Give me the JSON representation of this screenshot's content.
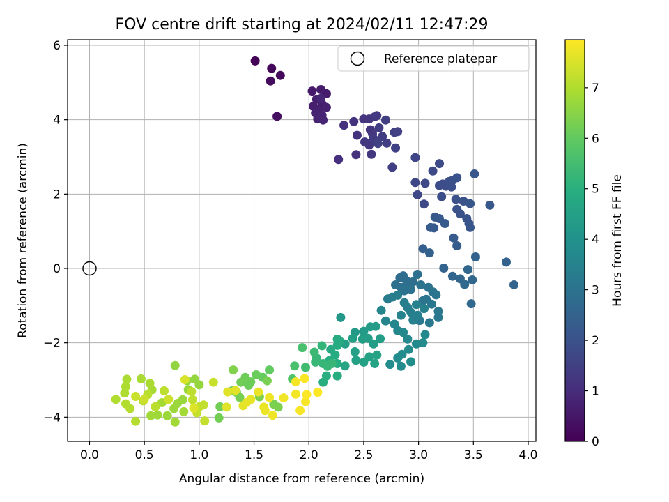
{
  "chart_data": {
    "type": "scatter",
    "title": "FOV centre drift starting at 2024/02/11 12:47:29",
    "xlabel": "Angular distance from reference (arcmin)",
    "ylabel": "Rotation from reference (arcmin)",
    "xlim": [
      -0.2,
      4.07
    ],
    "ylim": [
      -4.65,
      6.15
    ],
    "xticks": [
      "0.0",
      "0.5",
      "1.0",
      "1.5",
      "2.0",
      "2.5",
      "3.0",
      "3.5",
      "4.0"
    ],
    "yticks": [
      "−4",
      "−2",
      "0",
      "2",
      "4",
      "6"
    ],
    "grid": true,
    "legend": {
      "position": "top-right",
      "entries": [
        "Reference platepar"
      ]
    },
    "reference_point": {
      "x": 0.0,
      "y": 0.0
    },
    "colorbar": {
      "label": "Hours from first FF file",
      "range": [
        0,
        7.95
      ],
      "ticks": [
        "0",
        "1",
        "2",
        "3",
        "4",
        "5",
        "6",
        "7"
      ],
      "colormap": "viridis"
    },
    "points": [
      {
        "x": 1.51,
        "y": 5.58,
        "h": 0.05
      },
      {
        "x": 1.66,
        "y": 5.38,
        "h": 0.15
      },
      {
        "x": 1.74,
        "y": 5.19,
        "h": 0.2
      },
      {
        "x": 1.65,
        "y": 5.04,
        "h": 0.25
      },
      {
        "x": 1.71,
        "y": 4.09,
        "h": 0.35
      },
      {
        "x": 2.03,
        "y": 4.77,
        "h": 0.55
      },
      {
        "x": 2.11,
        "y": 4.81,
        "h": 0.6
      },
      {
        "x": 2.16,
        "y": 4.7,
        "h": 0.62
      },
      {
        "x": 2.07,
        "y": 4.55,
        "h": 0.65
      },
      {
        "x": 2.12,
        "y": 4.42,
        "h": 0.68
      },
      {
        "x": 2.04,
        "y": 4.36,
        "h": 0.7
      },
      {
        "x": 2.09,
        "y": 4.27,
        "h": 0.72
      },
      {
        "x": 2.16,
        "y": 4.33,
        "h": 0.74
      },
      {
        "x": 2.06,
        "y": 4.18,
        "h": 0.76
      },
      {
        "x": 2.12,
        "y": 4.12,
        "h": 0.78
      },
      {
        "x": 2.08,
        "y": 4.02,
        "h": 0.8
      },
      {
        "x": 2.13,
        "y": 3.99,
        "h": 0.82
      },
      {
        "x": 2.11,
        "y": 4.57,
        "h": 0.84
      },
      {
        "x": 2.27,
        "y": 2.93,
        "h": 1.05
      },
      {
        "x": 2.32,
        "y": 3.85,
        "h": 1.1
      },
      {
        "x": 2.41,
        "y": 3.95,
        "h": 1.12
      },
      {
        "x": 2.44,
        "y": 3.58,
        "h": 1.14
      },
      {
        "x": 2.43,
        "y": 3.06,
        "h": 1.16
      },
      {
        "x": 2.5,
        "y": 4.02,
        "h": 1.18
      },
      {
        "x": 2.55,
        "y": 4.02,
        "h": 1.2
      },
      {
        "x": 2.56,
        "y": 3.73,
        "h": 1.22
      },
      {
        "x": 2.58,
        "y": 3.62,
        "h": 1.24
      },
      {
        "x": 2.55,
        "y": 3.32,
        "h": 1.26
      },
      {
        "x": 2.51,
        "y": 3.4,
        "h": 1.28
      },
      {
        "x": 2.57,
        "y": 3.07,
        "h": 1.3
      },
      {
        "x": 2.6,
        "y": 4.08,
        "h": 1.32
      },
      {
        "x": 2.62,
        "y": 4.11,
        "h": 1.34
      },
      {
        "x": 2.59,
        "y": 3.49,
        "h": 1.36
      },
      {
        "x": 2.61,
        "y": 3.4,
        "h": 1.38
      },
      {
        "x": 2.64,
        "y": 3.78,
        "h": 1.4
      },
      {
        "x": 2.67,
        "y": 3.55,
        "h": 1.42
      },
      {
        "x": 2.7,
        "y": 3.99,
        "h": 1.44
      },
      {
        "x": 2.71,
        "y": 3.37,
        "h": 1.46
      },
      {
        "x": 2.76,
        "y": 2.72,
        "h": 1.48
      },
      {
        "x": 2.78,
        "y": 3.66,
        "h": 1.5
      },
      {
        "x": 2.81,
        "y": 3.68,
        "h": 1.52
      },
      {
        "x": 2.79,
        "y": 3.24,
        "h": 1.54
      },
      {
        "x": 2.63,
        "y": 3.36,
        "h": 1.56
      },
      {
        "x": 2.97,
        "y": 2.98,
        "h": 1.65
      },
      {
        "x": 2.97,
        "y": 2.31,
        "h": 1.7
      },
      {
        "x": 2.99,
        "y": 1.98,
        "h": 1.72
      },
      {
        "x": 3.06,
        "y": 2.29,
        "h": 1.74
      },
      {
        "x": 3.05,
        "y": 1.73,
        "h": 1.76
      },
      {
        "x": 3.13,
        "y": 2.62,
        "h": 1.78
      },
      {
        "x": 3.19,
        "y": 2.82,
        "h": 1.8
      },
      {
        "x": 3.19,
        "y": 2.23,
        "h": 1.82
      },
      {
        "x": 3.22,
        "y": 2.27,
        "h": 1.84
      },
      {
        "x": 3.25,
        "y": 2.21,
        "h": 1.86
      },
      {
        "x": 3.21,
        "y": 1.93,
        "h": 1.88
      },
      {
        "x": 3.28,
        "y": 2.34,
        "h": 1.9
      },
      {
        "x": 3.3,
        "y": 2.19,
        "h": 1.92
      },
      {
        "x": 3.31,
        "y": 2.37,
        "h": 1.94
      },
      {
        "x": 3.35,
        "y": 2.44,
        "h": 1.96
      },
      {
        "x": 3.34,
        "y": 1.86,
        "h": 1.98
      },
      {
        "x": 3.41,
        "y": 1.81,
        "h": 2.0
      },
      {
        "x": 3.35,
        "y": 1.59,
        "h": 2.02
      },
      {
        "x": 3.38,
        "y": 1.47,
        "h": 2.04
      },
      {
        "x": 3.44,
        "y": 1.34,
        "h": 2.06
      },
      {
        "x": 3.46,
        "y": 1.21,
        "h": 2.08
      },
      {
        "x": 3.47,
        "y": 1.1,
        "h": 2.1
      },
      {
        "x": 3.47,
        "y": 1.74,
        "h": 2.12
      },
      {
        "x": 3.51,
        "y": 2.54,
        "h": 2.14
      },
      {
        "x": 3.65,
        "y": 1.7,
        "h": 2.16
      },
      {
        "x": 3.15,
        "y": 1.38,
        "h": 2.18
      },
      {
        "x": 3.19,
        "y": 1.34,
        "h": 2.2
      },
      {
        "x": 3.24,
        "y": 1.21,
        "h": 2.22
      },
      {
        "x": 3.14,
        "y": 1.09,
        "h": 2.24
      },
      {
        "x": 3.11,
        "y": 1.1,
        "h": 2.26
      },
      {
        "x": 3.32,
        "y": 0.82,
        "h": 2.28
      },
      {
        "x": 3.35,
        "y": 0.61,
        "h": 2.3
      },
      {
        "x": 3.04,
        "y": 0.53,
        "h": 2.4
      },
      {
        "x": 3.1,
        "y": 0.42,
        "h": 2.45
      },
      {
        "x": 3.52,
        "y": 0.31,
        "h": 2.5
      },
      {
        "x": 3.8,
        "y": 0.17,
        "h": 2.52
      },
      {
        "x": 3.87,
        "y": -0.44,
        "h": 2.54
      },
      {
        "x": 3.23,
        "y": 0.01,
        "h": 2.56
      },
      {
        "x": 3.31,
        "y": -0.21,
        "h": 2.58
      },
      {
        "x": 3.38,
        "y": -0.28,
        "h": 2.6
      },
      {
        "x": 3.45,
        "y": -0.03,
        "h": 2.62
      },
      {
        "x": 3.49,
        "y": -0.31,
        "h": 2.64
      },
      {
        "x": 3.42,
        "y": -0.43,
        "h": 2.66
      },
      {
        "x": 3.48,
        "y": -0.95,
        "h": 2.68
      },
      {
        "x": 2.83,
        "y": -0.25,
        "h": 2.8
      },
      {
        "x": 2.86,
        "y": -0.2,
        "h": 2.82
      },
      {
        "x": 2.89,
        "y": -0.33,
        "h": 2.84
      },
      {
        "x": 2.91,
        "y": -0.4,
        "h": 2.86
      },
      {
        "x": 2.95,
        "y": -0.36,
        "h": 2.88
      },
      {
        "x": 2.99,
        "y": -0.16,
        "h": 2.9
      },
      {
        "x": 2.79,
        "y": -0.44,
        "h": 2.92
      },
      {
        "x": 2.84,
        "y": -0.51,
        "h": 2.94
      },
      {
        "x": 2.87,
        "y": -0.6,
        "h": 2.96
      },
      {
        "x": 2.93,
        "y": -0.56,
        "h": 2.98
      },
      {
        "x": 3.02,
        "y": -0.44,
        "h": 3.0
      },
      {
        "x": 3.09,
        "y": -0.51,
        "h": 3.02
      },
      {
        "x": 3.13,
        "y": -0.63,
        "h": 3.04
      },
      {
        "x": 3.16,
        "y": -0.71,
        "h": 3.06
      },
      {
        "x": 3.07,
        "y": -0.83,
        "h": 3.08
      },
      {
        "x": 3.04,
        "y": -0.87,
        "h": 3.1
      },
      {
        "x": 3.12,
        "y": -0.96,
        "h": 3.12
      },
      {
        "x": 3.18,
        "y": -1.15,
        "h": 3.14
      },
      {
        "x": 3.18,
        "y": -1.32,
        "h": 3.16
      },
      {
        "x": 3.1,
        "y": -1.46,
        "h": 3.18
      },
      {
        "x": 3.01,
        "y": -1.4,
        "h": 3.2
      },
      {
        "x": 2.72,
        "y": -0.82,
        "h": 3.3
      },
      {
        "x": 2.76,
        "y": -0.77,
        "h": 3.32
      },
      {
        "x": 2.81,
        "y": -0.72,
        "h": 3.34
      },
      {
        "x": 2.87,
        "y": -0.92,
        "h": 3.36
      },
      {
        "x": 2.9,
        "y": -1.05,
        "h": 3.38
      },
      {
        "x": 2.93,
        "y": -1.18,
        "h": 3.4
      },
      {
        "x": 2.99,
        "y": -1.26,
        "h": 3.42
      },
      {
        "x": 2.95,
        "y": -1.39,
        "h": 3.44
      },
      {
        "x": 3.05,
        "y": -1.08,
        "h": 3.46
      },
      {
        "x": 2.98,
        "y": -0.97,
        "h": 3.48
      },
      {
        "x": 2.84,
        "y": -1.26,
        "h": 3.5
      },
      {
        "x": 2.66,
        "y": -1.13,
        "h": 3.6
      },
      {
        "x": 2.7,
        "y": -1.41,
        "h": 3.62
      },
      {
        "x": 2.78,
        "y": -1.5,
        "h": 3.64
      },
      {
        "x": 2.81,
        "y": -1.67,
        "h": 3.66
      },
      {
        "x": 2.86,
        "y": -1.72,
        "h": 3.68
      },
      {
        "x": 2.9,
        "y": -1.9,
        "h": 3.7
      },
      {
        "x": 3.06,
        "y": -1.78,
        "h": 3.72
      },
      {
        "x": 3.04,
        "y": -2.0,
        "h": 3.74
      },
      {
        "x": 2.98,
        "y": -2.03,
        "h": 3.76
      },
      {
        "x": 2.91,
        "y": -2.18,
        "h": 3.78
      },
      {
        "x": 2.85,
        "y": -2.31,
        "h": 3.8
      },
      {
        "x": 2.81,
        "y": -2.41,
        "h": 3.82
      },
      {
        "x": 2.84,
        "y": -2.63,
        "h": 3.84
      },
      {
        "x": 2.74,
        "y": -2.58,
        "h": 3.86
      },
      {
        "x": 2.93,
        "y": -2.51,
        "h": 3.88
      },
      {
        "x": 2.29,
        "y": -1.32,
        "h": 4.2
      },
      {
        "x": 2.42,
        "y": -1.72,
        "h": 4.3
      },
      {
        "x": 2.5,
        "y": -1.69,
        "h": 4.32
      },
      {
        "x": 2.56,
        "y": -1.57,
        "h": 4.34
      },
      {
        "x": 2.61,
        "y": -1.56,
        "h": 4.36
      },
      {
        "x": 2.65,
        "y": -1.89,
        "h": 4.38
      },
      {
        "x": 2.59,
        "y": -2.03,
        "h": 4.4
      },
      {
        "x": 2.54,
        "y": -1.88,
        "h": 4.42
      },
      {
        "x": 2.49,
        "y": -1.9,
        "h": 4.44
      },
      {
        "x": 2.4,
        "y": -1.88,
        "h": 4.46
      },
      {
        "x": 2.33,
        "y": -2.03,
        "h": 4.48
      },
      {
        "x": 2.42,
        "y": -2.24,
        "h": 4.5
      },
      {
        "x": 2.43,
        "y": -2.47,
        "h": 4.52
      },
      {
        "x": 2.5,
        "y": -2.52,
        "h": 4.54
      },
      {
        "x": 2.55,
        "y": -2.38,
        "h": 4.56
      },
      {
        "x": 2.6,
        "y": -2.56,
        "h": 4.58
      },
      {
        "x": 2.62,
        "y": -2.33,
        "h": 4.6
      },
      {
        "x": 2.33,
        "y": -2.62,
        "h": 4.62
      },
      {
        "x": 2.2,
        "y": -2.18,
        "h": 4.8
      },
      {
        "x": 2.26,
        "y": -1.9,
        "h": 4.82
      },
      {
        "x": 2.28,
        "y": -1.95,
        "h": 4.84
      },
      {
        "x": 2.26,
        "y": -2.07,
        "h": 4.86
      },
      {
        "x": 2.24,
        "y": -2.33,
        "h": 4.88
      },
      {
        "x": 2.19,
        "y": -2.47,
        "h": 4.9
      },
      {
        "x": 2.26,
        "y": -2.56,
        "h": 4.92
      },
      {
        "x": 2.26,
        "y": -2.89,
        "h": 4.94
      },
      {
        "x": 2.16,
        "y": -2.89,
        "h": 4.96
      },
      {
        "x": 2.13,
        "y": -3.06,
        "h": 4.98
      },
      {
        "x": 2.12,
        "y": -2.08,
        "h": 5.2
      },
      {
        "x": 2.13,
        "y": -2.56,
        "h": 5.22
      },
      {
        "x": 2.07,
        "y": -2.41,
        "h": 5.24
      },
      {
        "x": 2.17,
        "y": -2.63,
        "h": 5.26
      },
      {
        "x": 2.21,
        "y": -2.56,
        "h": 5.28
      },
      {
        "x": 2.06,
        "y": -2.52,
        "h": 5.3
      },
      {
        "x": 2.05,
        "y": -2.25,
        "h": 5.35
      },
      {
        "x": 1.97,
        "y": -2.66,
        "h": 5.45
      },
      {
        "x": 1.94,
        "y": -2.13,
        "h": 5.6
      },
      {
        "x": 1.87,
        "y": -2.62,
        "h": 5.62
      },
      {
        "x": 1.85,
        "y": -2.97,
        "h": 5.7
      },
      {
        "x": 1.64,
        "y": -2.73,
        "h": 6.0
      },
      {
        "x": 1.58,
        "y": -2.93,
        "h": 6.05
      },
      {
        "x": 1.52,
        "y": -2.86,
        "h": 6.1
      },
      {
        "x": 1.47,
        "y": -3.05,
        "h": 6.12
      },
      {
        "x": 1.45,
        "y": -3.14,
        "h": 6.14
      },
      {
        "x": 1.42,
        "y": -2.93,
        "h": 6.16
      },
      {
        "x": 1.38,
        "y": -3.06,
        "h": 6.18
      },
      {
        "x": 1.3,
        "y": -3.29,
        "h": 6.2
      },
      {
        "x": 1.19,
        "y": -3.72,
        "h": 6.22
      },
      {
        "x": 1.18,
        "y": -4.02,
        "h": 6.24
      },
      {
        "x": 1.34,
        "y": -3.33,
        "h": 6.26
      },
      {
        "x": 1.37,
        "y": -3.47,
        "h": 6.28
      },
      {
        "x": 1.62,
        "y": -3.02,
        "h": 6.3
      },
      {
        "x": 1.68,
        "y": -3.65,
        "h": 6.32
      },
      {
        "x": 1.72,
        "y": -3.73,
        "h": 6.34
      },
      {
        "x": 1.55,
        "y": -3.45,
        "h": 6.36
      },
      {
        "x": 1.31,
        "y": -2.73,
        "h": 6.4
      },
      {
        "x": 0.78,
        "y": -2.61,
        "h": 6.6
      },
      {
        "x": 0.89,
        "y": -3.02,
        "h": 6.62
      },
      {
        "x": 0.96,
        "y": -2.98,
        "h": 6.64
      },
      {
        "x": 1.0,
        "y": -3.13,
        "h": 6.66
      },
      {
        "x": 0.9,
        "y": -3.26,
        "h": 6.68
      },
      {
        "x": 0.85,
        "y": -3.53,
        "h": 6.7
      },
      {
        "x": 0.8,
        "y": -3.63,
        "h": 6.72
      },
      {
        "x": 0.77,
        "y": -3.77,
        "h": 6.74
      },
      {
        "x": 0.71,
        "y": -3.96,
        "h": 6.76
      },
      {
        "x": 0.62,
        "y": -3.94,
        "h": 6.78
      },
      {
        "x": 0.56,
        "y": -3.96,
        "h": 6.8
      },
      {
        "x": 0.78,
        "y": -4.13,
        "h": 6.82
      },
      {
        "x": 0.86,
        "y": -3.85,
        "h": 6.84
      },
      {
        "x": 0.66,
        "y": -3.61,
        "h": 6.86
      },
      {
        "x": 0.57,
        "y": -3.26,
        "h": 6.88
      },
      {
        "x": 0.55,
        "y": -3.09,
        "h": 6.9
      },
      {
        "x": 0.47,
        "y": -2.97,
        "h": 6.92
      },
      {
        "x": 0.34,
        "y": -2.98,
        "h": 6.94
      },
      {
        "x": 0.33,
        "y": -3.18,
        "h": 6.96
      },
      {
        "x": 0.32,
        "y": -3.35,
        "h": 6.98
      },
      {
        "x": 0.24,
        "y": -3.52,
        "h": 7.0
      },
      {
        "x": 0.33,
        "y": -3.64,
        "h": 7.02
      },
      {
        "x": 0.37,
        "y": -3.77,
        "h": 7.04
      },
      {
        "x": 0.42,
        "y": -4.11,
        "h": 7.06
      },
      {
        "x": 0.49,
        "y": -3.56,
        "h": 7.08
      },
      {
        "x": 0.53,
        "y": -3.39,
        "h": 7.1
      },
      {
        "x": 0.6,
        "y": -3.72,
        "h": 7.12
      },
      {
        "x": 0.68,
        "y": -3.29,
        "h": 7.14
      },
      {
        "x": 0.93,
        "y": -3.31,
        "h": 7.16
      },
      {
        "x": 0.94,
        "y": -3.53,
        "h": 7.18
      },
      {
        "x": 1.0,
        "y": -3.72,
        "h": 7.2
      },
      {
        "x": 1.04,
        "y": -3.67,
        "h": 7.22
      },
      {
        "x": 1.05,
        "y": -4.1,
        "h": 7.24
      },
      {
        "x": 0.98,
        "y": -3.88,
        "h": 7.26
      },
      {
        "x": 1.13,
        "y": -3.06,
        "h": 7.28
      },
      {
        "x": 0.42,
        "y": -3.44,
        "h": 7.3
      },
      {
        "x": 0.5,
        "y": -3.52,
        "h": 7.32
      },
      {
        "x": 0.72,
        "y": -3.52,
        "h": 7.34
      },
      {
        "x": 0.87,
        "y": -2.99,
        "h": 7.5
      },
      {
        "x": 0.95,
        "y": -3.76,
        "h": 7.55
      },
      {
        "x": 1.25,
        "y": -3.73,
        "h": 7.58
      },
      {
        "x": 1.26,
        "y": -3.32,
        "h": 7.6
      },
      {
        "x": 1.33,
        "y": -3.28,
        "h": 7.62
      },
      {
        "x": 1.4,
        "y": -3.69,
        "h": 7.64
      },
      {
        "x": 1.43,
        "y": -3.61,
        "h": 7.66
      },
      {
        "x": 1.47,
        "y": -3.52,
        "h": 7.68
      },
      {
        "x": 1.54,
        "y": -3.32,
        "h": 7.7
      },
      {
        "x": 1.59,
        "y": -3.73,
        "h": 7.72
      },
      {
        "x": 1.6,
        "y": -3.82,
        "h": 7.74
      },
      {
        "x": 1.64,
        "y": -3.47,
        "h": 7.76
      },
      {
        "x": 1.67,
        "y": -3.95,
        "h": 7.78
      },
      {
        "x": 1.77,
        "y": -3.48,
        "h": 7.8
      },
      {
        "x": 1.88,
        "y": -3.38,
        "h": 7.82
      },
      {
        "x": 1.88,
        "y": -3.05,
        "h": 7.84
      },
      {
        "x": 1.92,
        "y": -3.82,
        "h": 7.86
      },
      {
        "x": 1.97,
        "y": -3.58,
        "h": 7.88
      },
      {
        "x": 1.96,
        "y": -2.96,
        "h": 7.9
      },
      {
        "x": 1.98,
        "y": -3.39,
        "h": 7.92
      },
      {
        "x": 2.08,
        "y": -3.33,
        "h": 7.94
      }
    ]
  }
}
